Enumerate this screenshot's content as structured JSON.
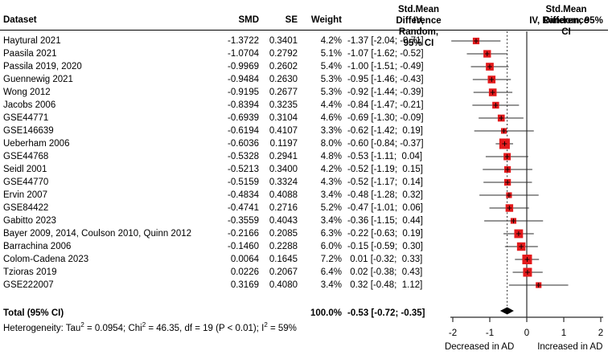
{
  "header": {
    "dataset": "Dataset",
    "smd": "SMD",
    "se": "SE",
    "weight": "Weight",
    "ci_line1": "Std.Mean Difference",
    "ci_line2": "IV, Random, 95% CI",
    "plot_line1": "Std.Mean Difference",
    "plot_line2": "IV, Random, 95% CI"
  },
  "chart_data": {
    "type": "scatter",
    "subtype": "forest-plot",
    "effect_measure": "Std.Mean Difference, IV, Random, 95% CI",
    "x_axis": {
      "ticks": [
        -2,
        -1,
        0,
        1,
        2
      ],
      "xlim": [
        -2.3,
        2.2
      ],
      "label_left": "Decreased in AD",
      "label_right": "Increased in AD"
    },
    "reference_line": 0,
    "pooled_line": -0.53,
    "studies": [
      {
        "name": "Haytural 2021",
        "smd": "-1.3722",
        "se": "0.3401",
        "weight": "4.2%",
        "weight_pct": 4.2,
        "ci_text": "-1.37 [-2.04; -0.71]",
        "est": -1.37,
        "lo": -2.04,
        "hi": -0.71
      },
      {
        "name": "Paasila 2021",
        "smd": "-1.0704",
        "se": "0.2792",
        "weight": "5.1%",
        "weight_pct": 5.1,
        "ci_text": "-1.07 [-1.62; -0.52]",
        "est": -1.07,
        "lo": -1.62,
        "hi": -0.52
      },
      {
        "name": "Passila 2019, 2020",
        "smd": "-0.9969",
        "se": "0.2602",
        "weight": "5.4%",
        "weight_pct": 5.4,
        "ci_text": "-1.00 [-1.51; -0.49]",
        "est": -1.0,
        "lo": -1.51,
        "hi": -0.49
      },
      {
        "name": "Guennewig 2021",
        "smd": "-0.9484",
        "se": "0.2630",
        "weight": "5.3%",
        "weight_pct": 5.3,
        "ci_text": "-0.95 [-1.46; -0.43]",
        "est": -0.95,
        "lo": -1.46,
        "hi": -0.43
      },
      {
        "name": "Wong 2012",
        "smd": "-0.9195",
        "se": "0.2677",
        "weight": "5.3%",
        "weight_pct": 5.3,
        "ci_text": "-0.92 [-1.44; -0.39]",
        "est": -0.92,
        "lo": -1.44,
        "hi": -0.39
      },
      {
        "name": "Jacobs 2006",
        "smd": "-0.8394",
        "se": "0.3235",
        "weight": "4.4%",
        "weight_pct": 4.4,
        "ci_text": "-0.84 [-1.47; -0.21]",
        "est": -0.84,
        "lo": -1.47,
        "hi": -0.21
      },
      {
        "name": "GSE44771",
        "smd": "-0.6939",
        "se": "0.3104",
        "weight": "4.6%",
        "weight_pct": 4.6,
        "ci_text": "-0.69 [-1.30; -0.09]",
        "est": -0.69,
        "lo": -1.3,
        "hi": -0.09
      },
      {
        "name": "GSE146639",
        "smd": "-0.6194",
        "se": "0.4107",
        "weight": "3.3%",
        "weight_pct": 3.3,
        "ci_text": "-0.62 [-1.42;  0.19]",
        "est": -0.62,
        "lo": -1.42,
        "hi": 0.19
      },
      {
        "name": "Ueberham 2006",
        "smd": "-0.6036",
        "se": "0.1197",
        "weight": "8.0%",
        "weight_pct": 8.0,
        "ci_text": "-0.60 [-0.84; -0.37]",
        "est": -0.6,
        "lo": -0.84,
        "hi": -0.37
      },
      {
        "name": "GSE44768",
        "smd": "-0.5328",
        "se": "0.2941",
        "weight": "4.8%",
        "weight_pct": 4.8,
        "ci_text": "-0.53 [-1.11;  0.04]",
        "est": -0.53,
        "lo": -1.11,
        "hi": 0.04
      },
      {
        "name": "Seidl 2001",
        "smd": "-0.5213",
        "se": "0.3400",
        "weight": "4.2%",
        "weight_pct": 4.2,
        "ci_text": "-0.52 [-1.19;  0.15]",
        "est": -0.52,
        "lo": -1.19,
        "hi": 0.15
      },
      {
        "name": "GSE44770",
        "smd": "-0.5159",
        "se": "0.3324",
        "weight": "4.3%",
        "weight_pct": 4.3,
        "ci_text": "-0.52 [-1.17;  0.14]",
        "est": -0.52,
        "lo": -1.17,
        "hi": 0.14
      },
      {
        "name": "Ervin 2007",
        "smd": "-0.4834",
        "se": "0.4088",
        "weight": "3.4%",
        "weight_pct": 3.4,
        "ci_text": "-0.48 [-1.28;  0.32]",
        "est": -0.48,
        "lo": -1.28,
        "hi": 0.32
      },
      {
        "name": "GSE84422",
        "smd": "-0.4741",
        "se": "0.2716",
        "weight": "5.2%",
        "weight_pct": 5.2,
        "ci_text": "-0.47 [-1.01;  0.06]",
        "est": -0.47,
        "lo": -1.01,
        "hi": 0.06
      },
      {
        "name": "Gabitto 2023",
        "smd": "-0.3559",
        "se": "0.4043",
        "weight": "3.4%",
        "weight_pct": 3.4,
        "ci_text": "-0.36 [-1.15;  0.44]",
        "est": -0.36,
        "lo": -1.15,
        "hi": 0.44
      },
      {
        "name": "Bayer 2009, 2014, Coulson 2010, Quinn 2012",
        "smd": "-0.2166",
        "se": "0.2085",
        "weight": "6.3%",
        "weight_pct": 6.3,
        "ci_text": "-0.22 [-0.63;  0.19]",
        "est": -0.22,
        "lo": -0.63,
        "hi": 0.19
      },
      {
        "name": "Barrachina 2006",
        "smd": "-0.1460",
        "se": "0.2288",
        "weight": "6.0%",
        "weight_pct": 6.0,
        "ci_text": "-0.15 [-0.59;  0.30]",
        "est": -0.15,
        "lo": -0.59,
        "hi": 0.3
      },
      {
        "name": "Colom-Cadena 2023",
        "smd": "0.0064",
        "se": "0.1645",
        "weight": "7.2%",
        "weight_pct": 7.2,
        "ci_text": " 0.01 [-0.32;  0.33]",
        "est": 0.01,
        "lo": -0.32,
        "hi": 0.33
      },
      {
        "name": "Tzioras 2019",
        "smd": "0.0226",
        "se": "0.2067",
        "weight": "6.4%",
        "weight_pct": 6.4,
        "ci_text": " 0.02 [-0.38;  0.43]",
        "est": 0.02,
        "lo": -0.38,
        "hi": 0.43
      },
      {
        "name": "GSE222007",
        "smd": "0.3169",
        "se": "0.4080",
        "weight": "3.4%",
        "weight_pct": 3.4,
        "ci_text": " 0.32 [-0.48;  1.12]",
        "est": 0.32,
        "lo": -0.48,
        "hi": 1.12
      }
    ],
    "total": {
      "label": "Total (95% CI)",
      "weight": "100.0%",
      "ci_text": "-0.53 [-0.72; -0.35]",
      "est": -0.53,
      "lo": -0.72,
      "hi": -0.35
    },
    "colors": {
      "square": "#e31a1c",
      "ci_line": "#2b2b2b",
      "axis": "#2b2b2b",
      "diamond": "#000000",
      "text": "#000000"
    },
    "legend_position": "none",
    "grid": false
  },
  "footer": {
    "heterogeneity_parts": [
      {
        "t": "Heterogeneity: Tau"
      },
      {
        "sup": "2"
      },
      {
        "t": " = 0.0954; Chi"
      },
      {
        "sup": "2"
      },
      {
        "t": " = 46.35, df = 19 (P < 0.01); I"
      },
      {
        "sup": "2"
      },
      {
        "t": " = 59%"
      }
    ]
  }
}
